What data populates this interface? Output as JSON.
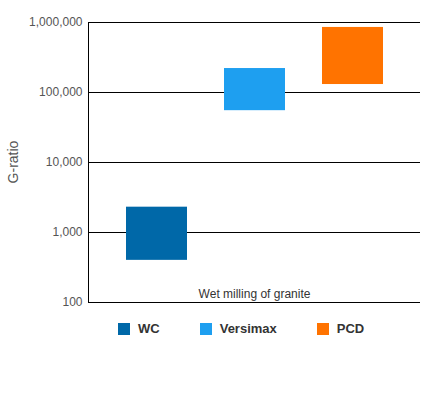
{
  "chart_data": {
    "type": "bar",
    "ylabel": "G-ratio",
    "xlabel": "Wet milling of granite",
    "series": [
      {
        "name": "WC",
        "color": "#0068a8",
        "low": 400,
        "high": 2300
      },
      {
        "name": "Versimax",
        "color": "#1e9ff0",
        "low": 55000,
        "high": 220000
      },
      {
        "name": "PCD",
        "color": "#ff7300",
        "low": 130000,
        "high": 850000
      }
    ],
    "log": "y",
    "ylim": [
      100,
      1000000
    ],
    "yticks": [
      100,
      {
        "value": 1000,
        "label": "1,000"
      },
      {
        "value": 10000,
        "label": "10,000"
      },
      {
        "value": 100000,
        "label": "100,000"
      },
      {
        "value": 1000000,
        "label": "1,000,000"
      }
    ],
    "grid": true,
    "legend": "bottom",
    "tick_labels": "y"
  }
}
